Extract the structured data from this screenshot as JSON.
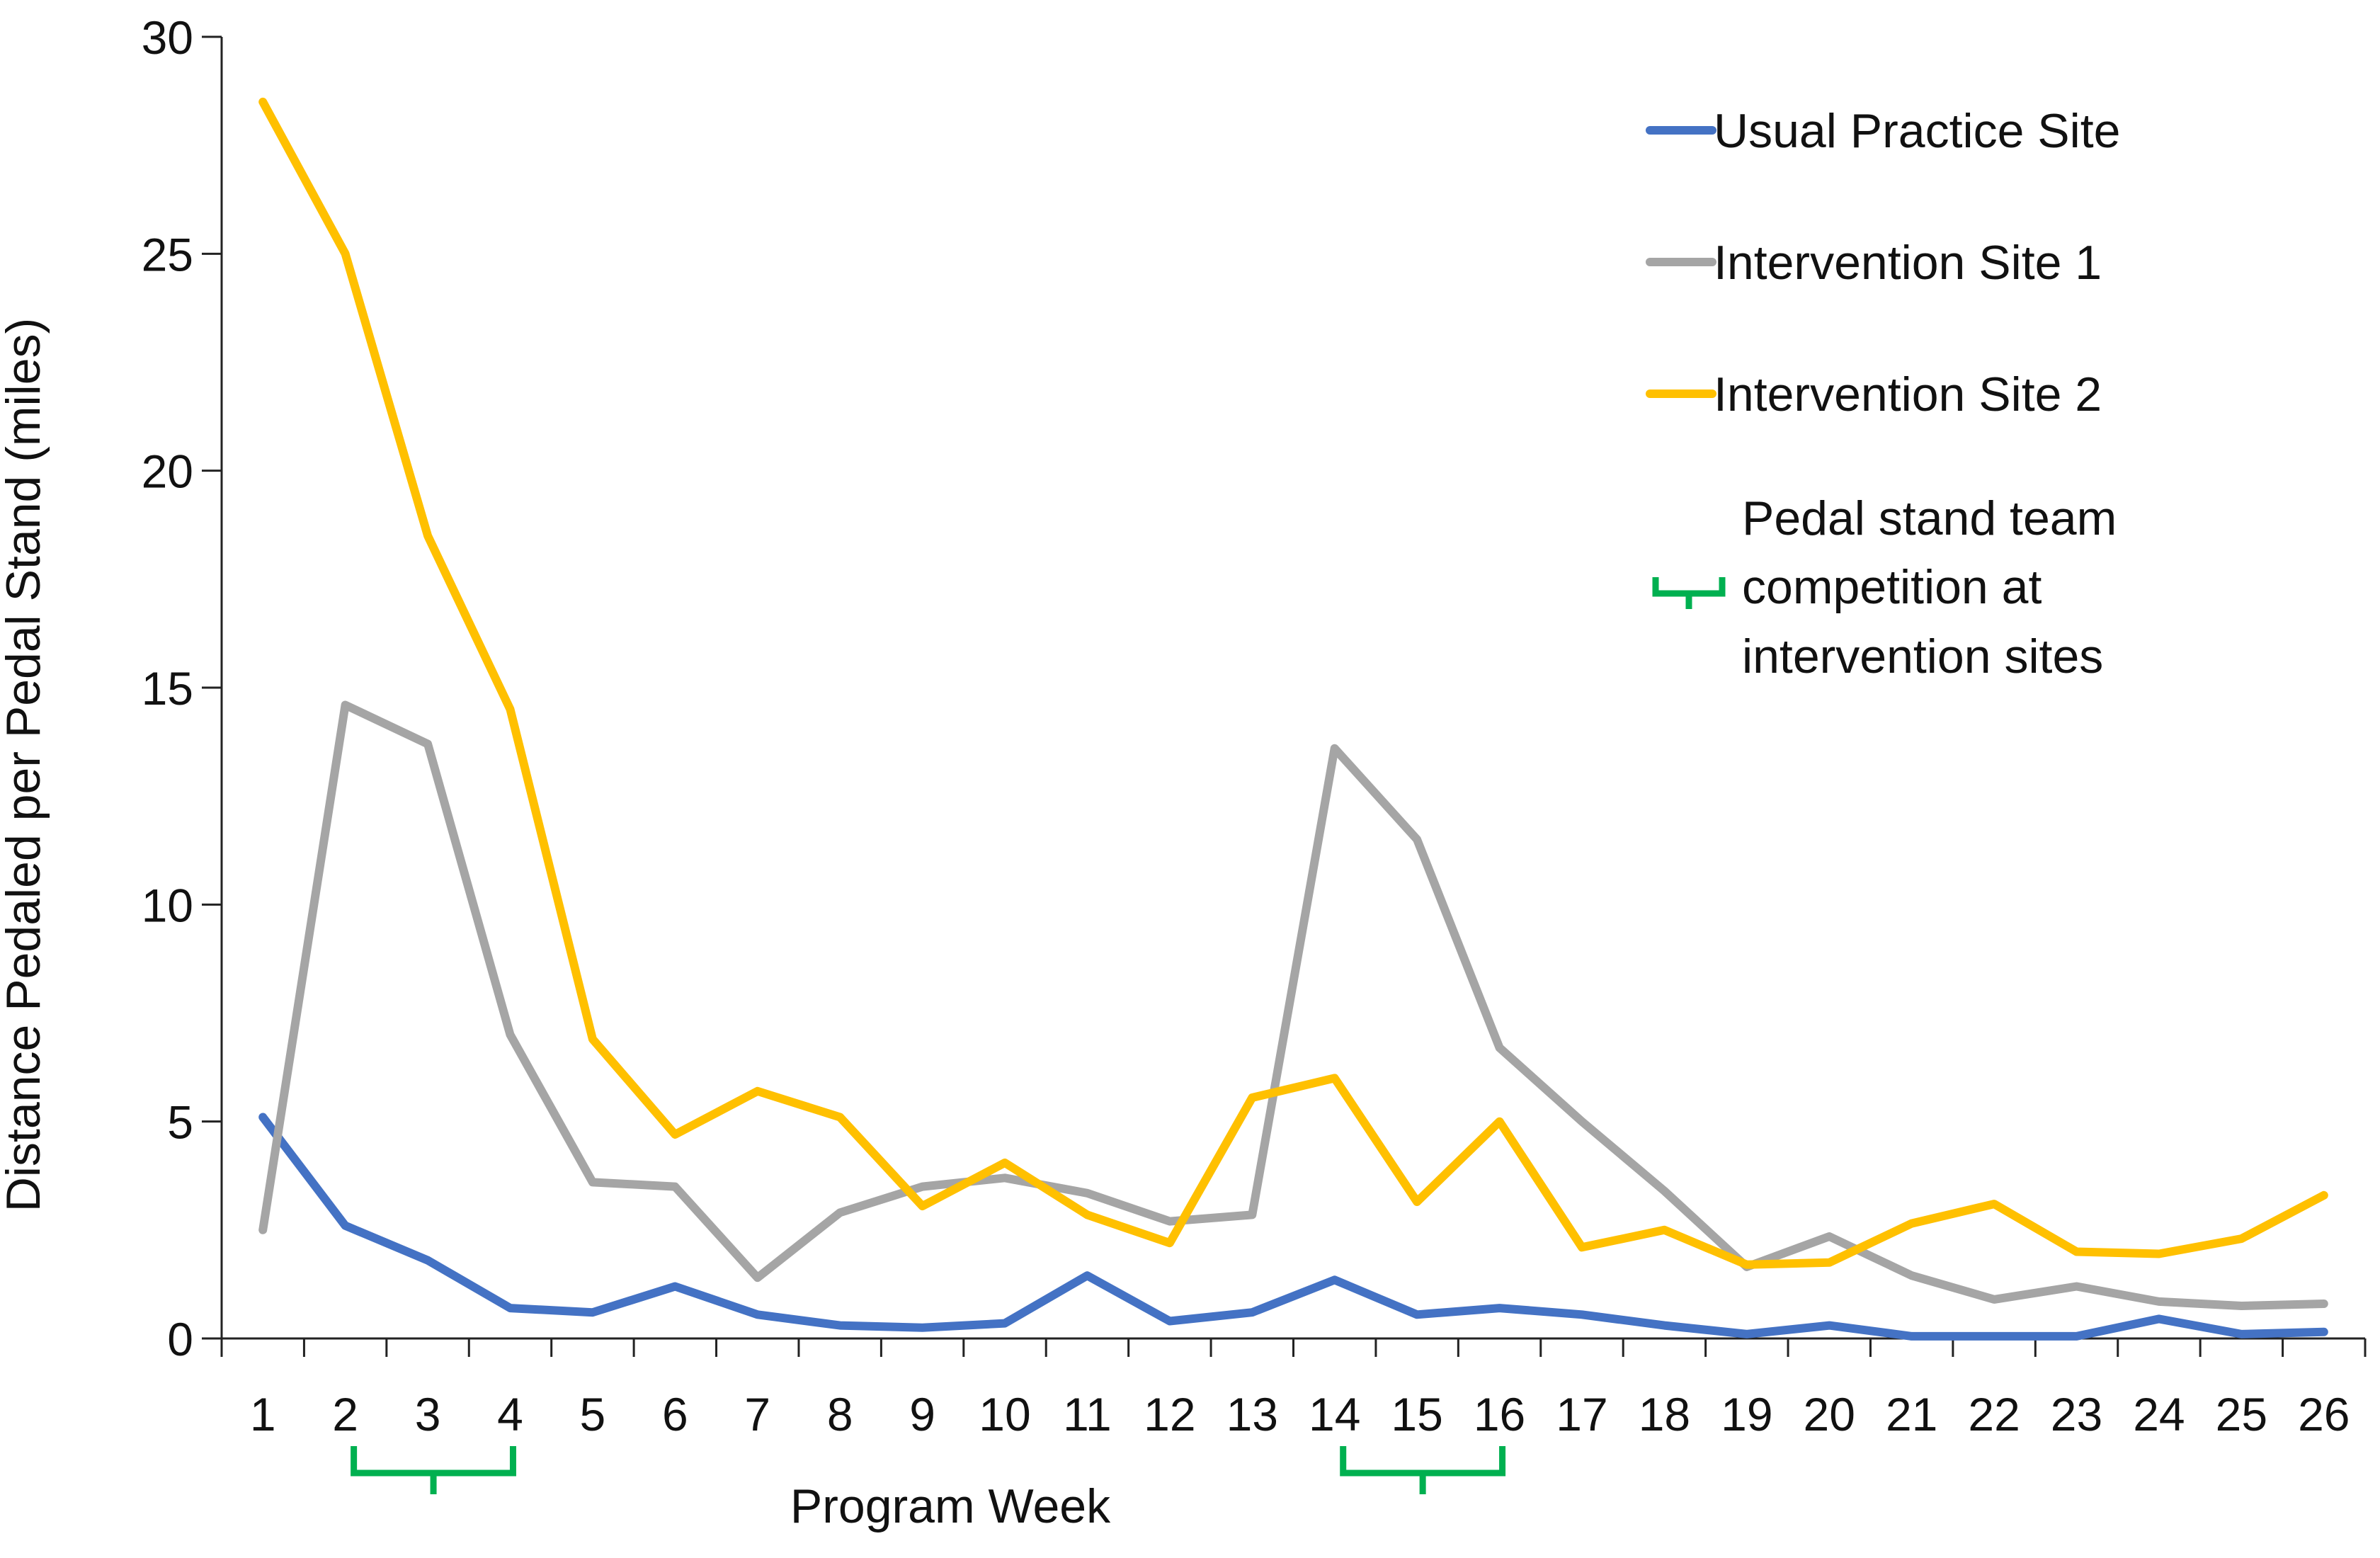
{
  "chart_data": {
    "type": "line",
    "title": "",
    "xlabel": "Program Week",
    "ylabel": "Distance Pedaled per Pedal Stand (miles)",
    "ylim": [
      0,
      30
    ],
    "yticks": [
      0,
      5,
      10,
      15,
      20,
      25,
      30
    ],
    "x": [
      1,
      2,
      3,
      4,
      5,
      6,
      7,
      8,
      9,
      10,
      11,
      12,
      13,
      14,
      15,
      16,
      17,
      18,
      19,
      20,
      21,
      22,
      23,
      24,
      25,
      26
    ],
    "legend_position": "top-right",
    "series": [
      {
        "name": "Usual Practice Site",
        "color": "#4472C4",
        "values": [
          5.1,
          2.6,
          1.8,
          0.7,
          0.6,
          1.2,
          0.55,
          0.3,
          0.25,
          0.35,
          1.45,
          0.4,
          0.6,
          1.35,
          0.55,
          0.7,
          0.55,
          0.3,
          0.1,
          0.3,
          0.05,
          0.05,
          0.05,
          0.45,
          0.1,
          0.15
        ]
      },
      {
        "name": "Intervention Site 1",
        "color": "#A5A5A5",
        "values": [
          2.5,
          14.6,
          13.7,
          7.0,
          3.6,
          3.5,
          1.4,
          2.9,
          3.5,
          3.7,
          3.35,
          2.7,
          2.85,
          13.6,
          11.5,
          6.7,
          5.0,
          3.4,
          1.65,
          2.35,
          1.45,
          0.9,
          1.2,
          0.85,
          0.75,
          0.8
        ]
      },
      {
        "name": "Intervention Site 2",
        "color": "#FFC000",
        "values": [
          28.5,
          25.0,
          18.5,
          14.5,
          6.9,
          4.7,
          5.7,
          5.1,
          3.05,
          4.05,
          2.85,
          2.2,
          5.55,
          6.0,
          3.15,
          5.0,
          2.1,
          2.5,
          1.7,
          1.75,
          2.65,
          3.1,
          2.0,
          1.95,
          2.3,
          3.3
        ]
      }
    ],
    "annotation": {
      "label_lines": [
        "Pedal stand team",
        "competition at",
        "intervention sites"
      ],
      "color": "#00B050",
      "periods": [
        [
          2,
          4
        ],
        [
          14,
          16
        ]
      ]
    }
  }
}
